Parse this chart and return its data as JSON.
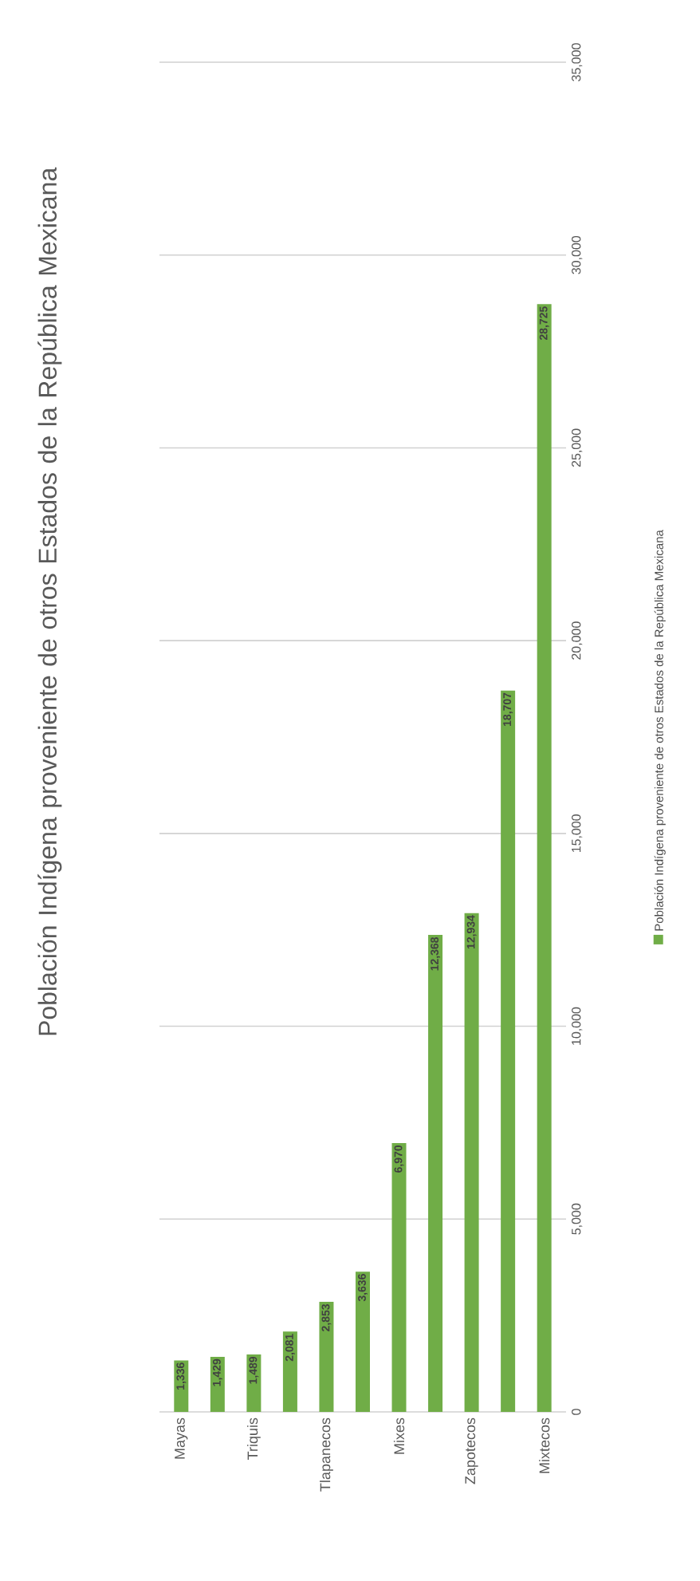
{
  "chart_data": {
    "type": "bar",
    "title": "Población Indígena proveniente de otros Estados de la República Mexicana",
    "categories": [
      "Mayas",
      null,
      "Triquis",
      null,
      "Tlapanecos",
      null,
      "Mixes",
      null,
      "Zapotecos",
      null,
      "Mixtecos"
    ],
    "series": [
      {
        "name": "Población Indígena proveniente de otros Estados de la República Mexicana",
        "color": "#70ad47",
        "values": [
          1336,
          1429,
          1489,
          2081,
          2853,
          3636,
          6970,
          12368,
          12934,
          18707,
          28725
        ],
        "value_labels": [
          "1,336",
          "1,429",
          "1,489",
          "2,081",
          "2,853",
          "3,636",
          "6,970",
          "12,368",
          "12,934",
          "18,707",
          "28,725"
        ]
      }
    ],
    "ylim": [
      0,
      35000
    ],
    "yticks": [
      0,
      {
        "value": 5000,
        "label": "5,000"
      },
      {
        "value": 10000,
        "label": "10,000"
      },
      {
        "value": 15000,
        "label": "15,000"
      },
      {
        "value": 20000,
        "label": "20,000"
      },
      {
        "value": 25000,
        "label": "25,000"
      },
      {
        "value": 30000,
        "label": "30,000"
      },
      {
        "value": 35000,
        "label": "35,000"
      }
    ],
    "grid": "y",
    "legend": "right"
  }
}
